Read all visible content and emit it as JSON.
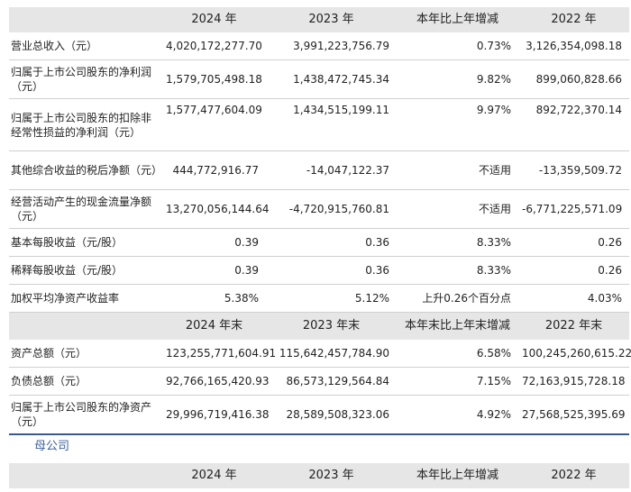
{
  "table1": {
    "header1": [
      "",
      "2024 年",
      "2023 年",
      "本年比上年增减",
      "2022 年"
    ],
    "rows1": [
      {
        "label": "营业总收入（元）",
        "v2024": "4,020,172,277.70",
        "v2023": "3,991,223,756.79",
        "change": "0.73%",
        "v2022": "3,126,354,098.18"
      },
      {
        "label": "归属于上市公司股东的净利润（元）",
        "v2024": "1,579,705,498.18",
        "v2023": "1,438,472,745.34",
        "change": "9.82%",
        "v2022": "899,060,828.66"
      },
      {
        "label": "归属于上市公司股东的扣除非经常性损益的净利润（元）",
        "v2024": "1,577,477,604.09",
        "v2023": "1,434,515,199.11",
        "change": "9.97%",
        "v2022": "892,722,370.14"
      },
      {
        "label": "其他综合收益的税后净额（元）",
        "v2024": "444,772,916.77",
        "v2023": "-14,047,122.37",
        "change": "不适用",
        "v2022": "-13,359,509.72"
      },
      {
        "label": "经营活动产生的现金流量净额（元）",
        "v2024": "13,270,056,144.64",
        "v2023": "-4,720,915,760.81",
        "change": "不适用",
        "v2022": "-6,771,225,571.09"
      },
      {
        "label": "基本每股收益（元/股）",
        "v2024": "0.39",
        "v2023": "0.36",
        "change": "8.33%",
        "v2022": "0.26"
      },
      {
        "label": "稀释每股收益（元/股）",
        "v2024": "0.39",
        "v2023": "0.36",
        "change": "8.33%",
        "v2022": "0.26"
      },
      {
        "label": "加权平均净资产收益率",
        "v2024": "5.38%",
        "v2023": "5.12%",
        "change": "上升0.26个百分点",
        "v2022": "4.03%"
      }
    ],
    "header2": [
      "",
      "2024 年末",
      "2023 年末",
      "本年末比上年末增减",
      "2022 年末"
    ],
    "rows2": [
      {
        "label": "资产总额（元）",
        "v2024": "123,255,771,604.91",
        "v2023": "115,642,457,784.90",
        "change": "6.58%",
        "v2022": "100,245,260,615.22"
      },
      {
        "label": "负债总额（元）",
        "v2024": "92,766,165,420.93",
        "v2023": "86,573,129,564.84",
        "change": "7.15%",
        "v2022": "72,163,915,728.18"
      },
      {
        "label": "归属于上市公司股东的净资产（元）",
        "v2024": "29,996,719,416.38",
        "v2023": "28,589,508,323.06",
        "change": "4.92%",
        "v2022": "27,568,525,395.69"
      }
    ]
  },
  "section_title": "母公司",
  "table2": {
    "header": [
      "",
      "2024 年",
      "2023 年",
      "本年比上年增减",
      "2022 年"
    ]
  }
}
